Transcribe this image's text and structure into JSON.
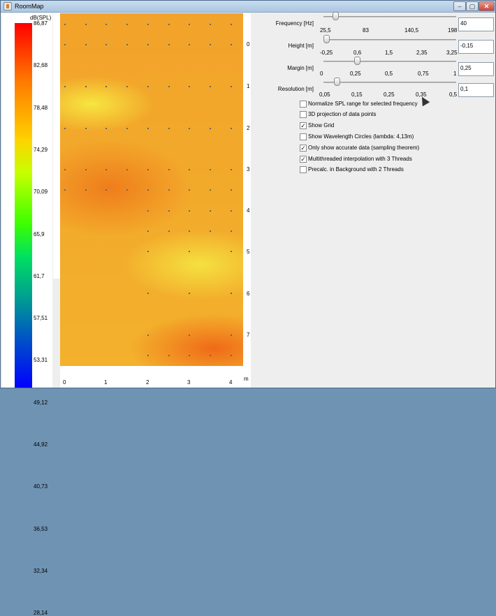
{
  "window": {
    "title": "RoomMap",
    "min": "–",
    "max": "▢",
    "close": "✕"
  },
  "legend": {
    "unit": "dB(SPL)",
    "labels": [
      "86,87",
      "82,68",
      "78,48",
      "74,29",
      "70,09",
      "65,9",
      "61,7",
      "57,51",
      "53,31",
      "49,12",
      "44,92",
      "40,73",
      "36,53",
      "32,34",
      "28,14"
    ]
  },
  "map": {
    "x_axis_unit": "m",
    "x_ticks": [
      "0",
      "1",
      "2",
      "3",
      "4"
    ],
    "y_ticks": [
      "0",
      "1",
      "2",
      "3",
      "4",
      "5",
      "6",
      "7"
    ]
  },
  "controls": {
    "frequency": {
      "label": "Frequency [Hz]",
      "value": "40",
      "level": 0.09,
      "ticks": [
        "25,5",
        "83",
        "140,5",
        "198"
      ]
    },
    "height": {
      "label": "Height [m]",
      "value": "-0,15",
      "level": 0.02,
      "ticks": [
        "-0,25",
        "0,6",
        "1,5",
        "2,35",
        "3,25"
      ]
    },
    "margin": {
      "label": "Margin [m]",
      "value": "0,25",
      "level": 0.25,
      "ticks": [
        "0",
        "0,25",
        "0,5",
        "0,75",
        "1"
      ]
    },
    "resolution": {
      "label": "Resolution [m]",
      "value": "0,1",
      "level": 0.1,
      "ticks": [
        "0,05",
        "0,15",
        "0,25",
        "0,35",
        "0,5"
      ]
    }
  },
  "options": [
    {
      "label": "Normalize SPL range for selected frequency",
      "checked": false
    },
    {
      "label": "3D projection of data points",
      "checked": false
    },
    {
      "label": "Show Grid",
      "checked": true
    },
    {
      "label": "Show Wavelength Circles (lambda: 4,13m)",
      "checked": false
    },
    {
      "label": "Only show accurate data (sampling theorem)",
      "checked": true
    },
    {
      "label": "Multithreaded interpolation with 3 Threads",
      "checked": true
    },
    {
      "label": "Precalc. in Background with 2 Threads",
      "checked": false
    }
  ]
}
